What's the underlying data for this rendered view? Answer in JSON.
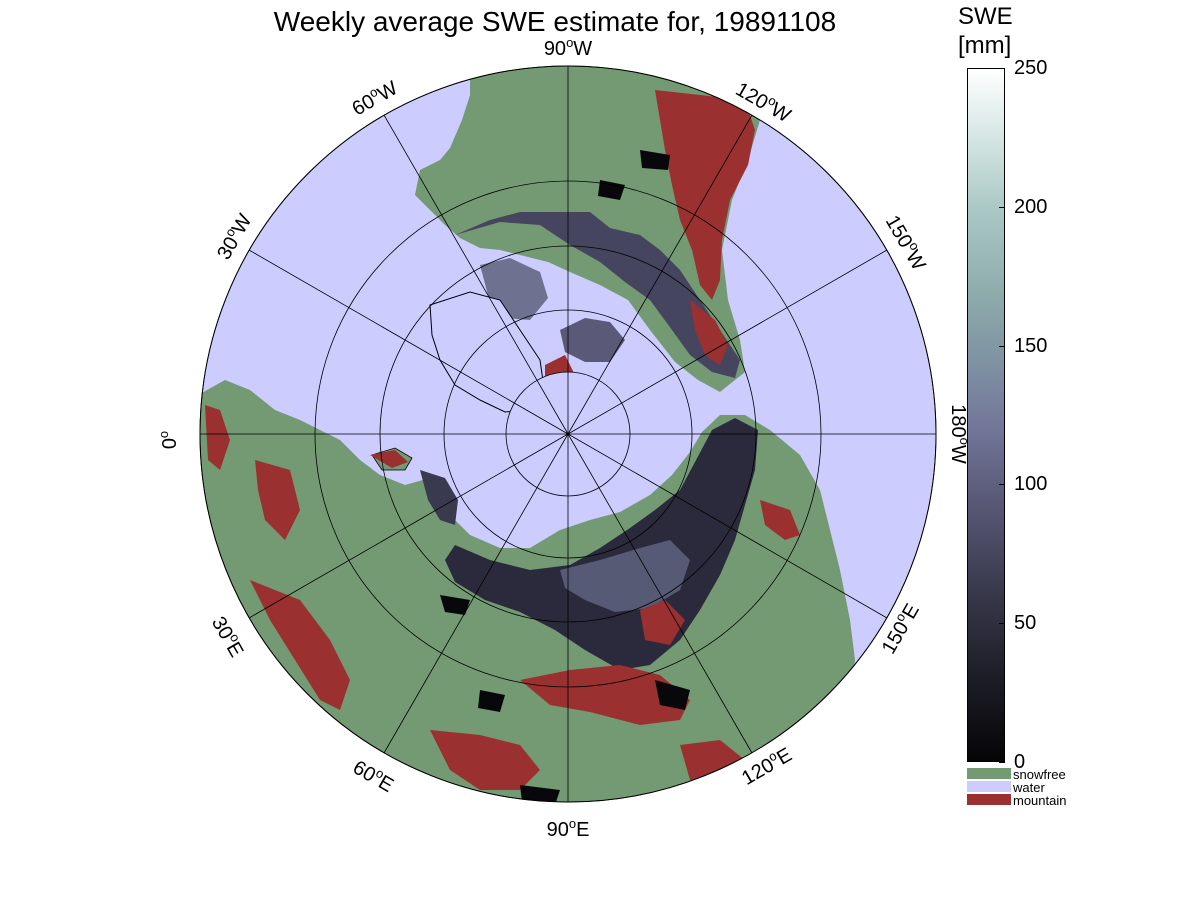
{
  "title": "Weekly average SWE estimate for, 19891108",
  "map": {
    "projection": "north-polar stereographic",
    "graticule": {
      "parallels_drawn": true,
      "meridian_step_deg": 30
    },
    "longitude_labels": [
      {
        "id": "90w",
        "num": "90",
        "deg": "o",
        "dir": "W"
      },
      {
        "id": "120w",
        "num": "120",
        "deg": "o",
        "dir": "W"
      },
      {
        "id": "150w",
        "num": "150",
        "deg": "o",
        "dir": "W"
      },
      {
        "id": "180w",
        "num": "180",
        "deg": "o",
        "dir": "W"
      },
      {
        "id": "150e",
        "num": "150",
        "deg": "o",
        "dir": "E"
      },
      {
        "id": "120e",
        "num": "120",
        "deg": "o",
        "dir": "E"
      },
      {
        "id": "90e",
        "num": "90",
        "deg": "o",
        "dir": "E"
      },
      {
        "id": "60e",
        "num": "60",
        "deg": "o",
        "dir": "E"
      },
      {
        "id": "30e",
        "num": "30",
        "deg": "o",
        "dir": "E"
      },
      {
        "id": "0",
        "num": "0",
        "deg": "o",
        "dir": ""
      },
      {
        "id": "30w",
        "num": "30",
        "deg": "o",
        "dir": "W"
      },
      {
        "id": "60w",
        "num": "60",
        "deg": "o",
        "dir": "W"
      }
    ],
    "colors": {
      "water": "#ccccff",
      "snowfree": "#739a73",
      "mountain": "#9b3030",
      "snow_dark": "#1e1e2c",
      "snow_mid": "#5a5a78",
      "snow_light": "#9aa0b8"
    }
  },
  "colorbar": {
    "title_line1": "SWE",
    "title_line2": "[mm]",
    "min": 0,
    "max": 250,
    "ticks": [
      "0",
      "50",
      "100",
      "150",
      "200",
      "250"
    ]
  },
  "legend": [
    {
      "label": "snowfree",
      "color": "#739a73"
    },
    {
      "label": "water",
      "color": "#ccccff"
    },
    {
      "label": "mountain",
      "color": "#9b3030"
    }
  ]
}
